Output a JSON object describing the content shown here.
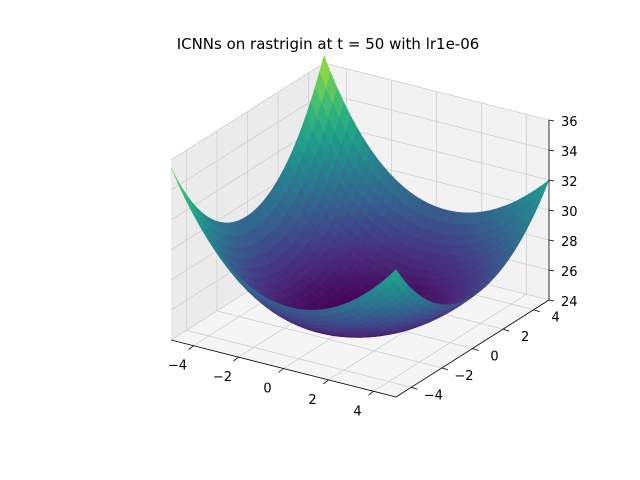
{
  "chart_data": {
    "type": "surface3d",
    "title": "ICNNs on rastrigin at t = 50 with lr1e-06",
    "xlabel": "",
    "ylabel": "",
    "zlabel": "",
    "xlim": [
      -5,
      5
    ],
    "ylim": [
      -5,
      5
    ],
    "zlim": [
      24,
      36
    ],
    "x_ticks": [
      "−4",
      "−2",
      "0",
      "2",
      "4"
    ],
    "y_ticks": [
      "−4",
      "−2",
      "0",
      "2",
      "4"
    ],
    "z_ticks": [
      "24",
      "26",
      "28",
      "30",
      "32",
      "34",
      "36"
    ],
    "grid": true,
    "colormap": "viridis",
    "corner_values": [
      {
        "x": -5,
        "y": -5,
        "z": 35.5
      },
      {
        "x": 5,
        "y": -5,
        "z": 32.5
      },
      {
        "x": 5,
        "y": 5,
        "z": 32
      },
      {
        "x": -5,
        "y": 5,
        "z": 36.5
      }
    ],
    "minimum_region": {
      "x": 0,
      "y": 0,
      "z": 24
    }
  },
  "colors": {
    "pane_side": "#ebebeb",
    "pane_back": "#f2f2f2",
    "pane_floor": "#f5f5f5",
    "grid": "#d0d0d0",
    "axis": "#000000",
    "viridis": [
      "#440154",
      "#482878",
      "#3e4989",
      "#31688e",
      "#26828e",
      "#1f9e89",
      "#35b779",
      "#6ece58",
      "#b5de2b",
      "#fde725"
    ]
  }
}
